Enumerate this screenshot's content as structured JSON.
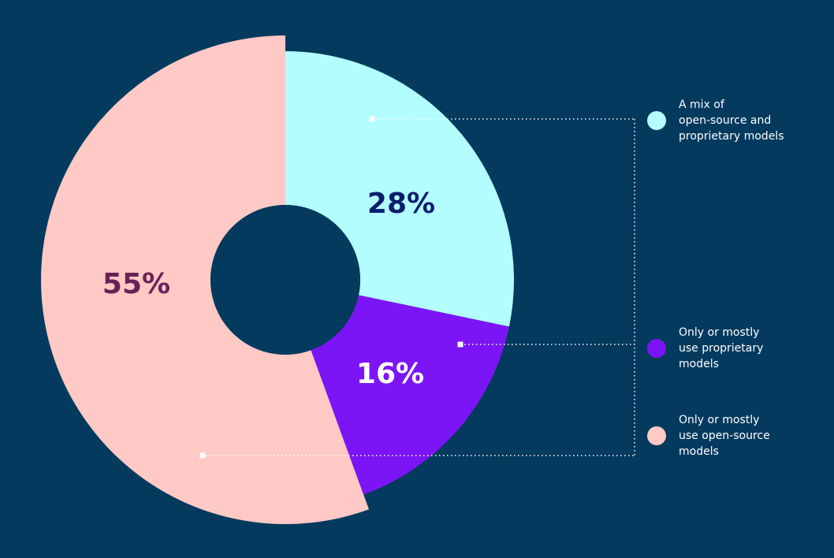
{
  "chart_data": {
    "type": "pie",
    "style": "donut",
    "title": "",
    "slices": [
      {
        "name": "A mix of open-source and proprietary models",
        "value": 28,
        "label": "28%",
        "color": "#B3FDFF",
        "label_color": "#0B1E6E",
        "legend_lines": [
          "A mix of",
          "open-source and",
          "proprietary models"
        ]
      },
      {
        "name": "Only or mostly use proprietary models",
        "value": 16,
        "label": "16%",
        "color": "#7C15F5",
        "label_color": "#FFFFFF",
        "legend_lines": [
          "Only or mostly",
          "use proprietary",
          "models"
        ]
      },
      {
        "name": "Only or mostly use open-source models",
        "value": 55,
        "label": "55%",
        "color": "#FFC9C6",
        "label_color": "#6B2157",
        "legend_lines": [
          "Only or mostly",
          "use open-source",
          "models"
        ]
      }
    ],
    "legend_position": "right",
    "background_color": "#043A5E"
  }
}
